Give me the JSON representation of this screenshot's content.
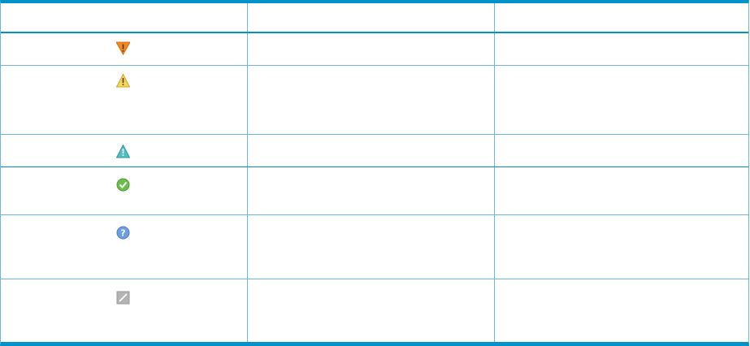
{
  "table": {
    "header": [
      "",
      "",
      ""
    ],
    "rows": [
      {
        "icon": "critical-down-triangle-icon",
        "color": "#f08a24"
      },
      {
        "icon": "warning-triangle-icon",
        "color": "#f5d65a"
      },
      {
        "icon": "minor-triangle-icon",
        "color": "#4fbfc3"
      },
      {
        "icon": "ok-check-circle-icon",
        "color": "#6cbf4e"
      },
      {
        "icon": "unknown-question-circle-icon",
        "color": "#6c9fe0"
      },
      {
        "icon": "disabled-slash-square-icon",
        "color": "#b4b4b4"
      }
    ],
    "border_color": "#0092c8"
  }
}
